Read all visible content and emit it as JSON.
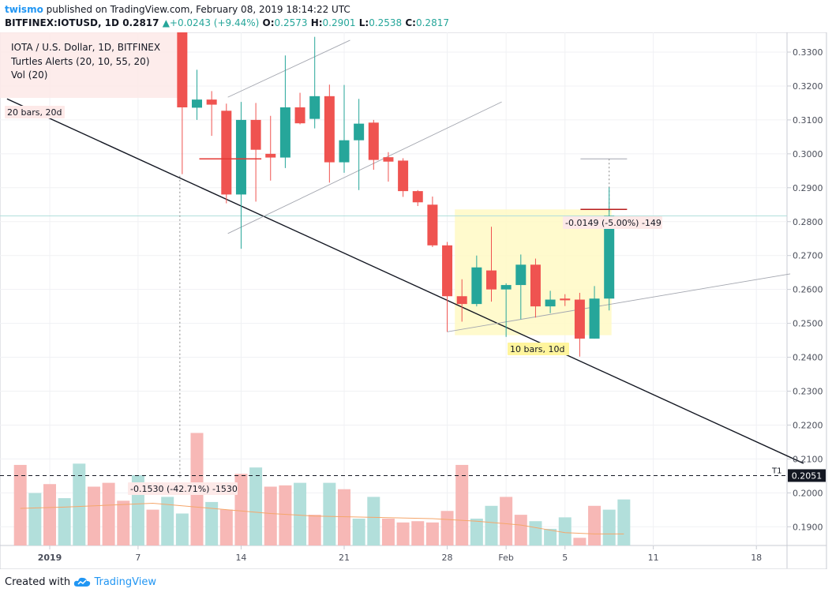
{
  "header": {
    "user": "twismo",
    "published": "published on TradingView.com, February 08, 2019 18:14:22 UTC",
    "symbol": "BITFINEX:IOTUSD, 1D",
    "last": "0.2817",
    "change": "+0.0243 (+9.44%)",
    "o_label": "O:",
    "o": "0.2573",
    "h_label": "H:",
    "h": "0.2901",
    "l_label": "L:",
    "l": "0.2538",
    "c_label": "C:",
    "c": "0.2817"
  },
  "legend": {
    "main": "IOTA / U.S. Dollar, 1D, BITFINEX",
    "indicator": "Turtles Alerts (20, 10, 55, 20)",
    "volume": "Vol (20)"
  },
  "annotations": {
    "bars20": "20 bars, 20d",
    "bars10": "10 bars, 10d",
    "measure_small": "-0.0149 (-5.00%) -149",
    "measure_big": "-0.1530 (-42.71%) -1530",
    "t1": "T1",
    "price_tag": "0.2051"
  },
  "footer": {
    "created": "Created with",
    "brand": "TradingView"
  },
  "colors": {
    "up": "#26a69a",
    "down": "#ef5350",
    "up_vol": "#b2dfdb",
    "down_vol": "#f7b8b6",
    "highlight": "#fff9c4",
    "accent": "#2196f3"
  },
  "chart_data": {
    "type": "candlestick",
    "y_ticks": [
      "0.3300",
      "0.3200",
      "0.3100",
      "0.3000",
      "0.2900",
      "0.2800",
      "0.2700",
      "0.2600",
      "0.2500",
      "0.2400",
      "0.2300",
      "0.2200",
      "0.2100",
      "0.2000",
      "0.1900"
    ],
    "x_ticks": [
      {
        "label": "2019",
        "i": 2
      },
      {
        "label": "7",
        "i": 8
      },
      {
        "label": "14",
        "i": 15
      },
      {
        "label": "21",
        "i": 22
      },
      {
        "label": "28",
        "i": 29
      },
      {
        "label": "Feb",
        "i": 33
      },
      {
        "label": "5",
        "i": 37
      },
      {
        "label": "11",
        "i": 43
      },
      {
        "label": "18",
        "i": 50
      }
    ],
    "candles": [
      {
        "i": 11,
        "o": 0.35,
        "h": 0.352,
        "l": 0.294,
        "c": 0.3137
      },
      {
        "i": 12,
        "o": 0.3136,
        "h": 0.3248,
        "l": 0.31,
        "c": 0.316
      },
      {
        "i": 13,
        "o": 0.316,
        "h": 0.3185,
        "l": 0.3053,
        "c": 0.3145
      },
      {
        "i": 14,
        "o": 0.3127,
        "h": 0.3148,
        "l": 0.2854,
        "c": 0.288
      },
      {
        "i": 15,
        "o": 0.288,
        "h": 0.3153,
        "l": 0.272,
        "c": 0.31
      },
      {
        "i": 16,
        "o": 0.31,
        "h": 0.315,
        "l": 0.2859,
        "c": 0.3012
      },
      {
        "i": 17,
        "o": 0.3,
        "h": 0.3112,
        "l": 0.2921,
        "c": 0.2989
      },
      {
        "i": 18,
        "o": 0.2989,
        "h": 0.329,
        "l": 0.2958,
        "c": 0.3137
      },
      {
        "i": 19,
        "o": 0.3137,
        "h": 0.318,
        "l": 0.3087,
        "c": 0.309
      },
      {
        "i": 20,
        "o": 0.3103,
        "h": 0.3345,
        "l": 0.3075,
        "c": 0.317
      },
      {
        "i": 21,
        "o": 0.317,
        "h": 0.3204,
        "l": 0.2915,
        "c": 0.2975
      },
      {
        "i": 22,
        "o": 0.2975,
        "h": 0.3203,
        "l": 0.2944,
        "c": 0.304
      },
      {
        "i": 23,
        "o": 0.304,
        "h": 0.3162,
        "l": 0.2893,
        "c": 0.3089
      },
      {
        "i": 24,
        "o": 0.3092,
        "h": 0.31,
        "l": 0.2953,
        "c": 0.2982
      },
      {
        "i": 25,
        "o": 0.299,
        "h": 0.3005,
        "l": 0.2918,
        "c": 0.2977
      },
      {
        "i": 26,
        "o": 0.298,
        "h": 0.2987,
        "l": 0.2873,
        "c": 0.289
      },
      {
        "i": 27,
        "o": 0.289,
        "h": 0.2893,
        "l": 0.2846,
        "c": 0.2857
      },
      {
        "i": 28,
        "o": 0.285,
        "h": 0.2874,
        "l": 0.2725,
        "c": 0.273
      },
      {
        "i": 29,
        "o": 0.273,
        "h": 0.274,
        "l": 0.2475,
        "c": 0.258
      },
      {
        "i": 30,
        "o": 0.258,
        "h": 0.263,
        "l": 0.2505,
        "c": 0.2557
      },
      {
        "i": 31,
        "o": 0.2557,
        "h": 0.27,
        "l": 0.255,
        "c": 0.2665
      },
      {
        "i": 32,
        "o": 0.2656,
        "h": 0.2785,
        "l": 0.2564,
        "c": 0.26
      },
      {
        "i": 33,
        "o": 0.26,
        "h": 0.2618,
        "l": 0.246,
        "c": 0.2613
      },
      {
        "i": 34,
        "o": 0.2613,
        "h": 0.2703,
        "l": 0.2512,
        "c": 0.2673
      },
      {
        "i": 35,
        "o": 0.2673,
        "h": 0.2691,
        "l": 0.2517,
        "c": 0.255
      },
      {
        "i": 36,
        "o": 0.255,
        "h": 0.2596,
        "l": 0.253,
        "c": 0.257
      },
      {
        "i": 37,
        "o": 0.2573,
        "h": 0.2586,
        "l": 0.2551,
        "c": 0.2568
      },
      {
        "i": 38,
        "o": 0.257,
        "h": 0.259,
        "l": 0.2402,
        "c": 0.2455
      },
      {
        "i": 39,
        "o": 0.2455,
        "h": 0.261,
        "l": 0.2455,
        "c": 0.2573
      },
      {
        "i": 40,
        "o": 0.2573,
        "h": 0.2901,
        "l": 0.2538,
        "c": 0.2817
      }
    ],
    "volume": [
      {
        "i": 0,
        "v": 0.63,
        "d": 1
      },
      {
        "i": 1,
        "v": 0.41,
        "d": 0
      },
      {
        "i": 2,
        "v": 0.48,
        "d": 1
      },
      {
        "i": 3,
        "v": 0.37,
        "d": 0
      },
      {
        "i": 4,
        "v": 0.64,
        "d": 0
      },
      {
        "i": 5,
        "v": 0.46,
        "d": 1
      },
      {
        "i": 6,
        "v": 0.49,
        "d": 1
      },
      {
        "i": 7,
        "v": 0.35,
        "d": 1
      },
      {
        "i": 8,
        "v": 0.55,
        "d": 0
      },
      {
        "i": 9,
        "v": 0.28,
        "d": 1
      },
      {
        "i": 10,
        "v": 0.38,
        "d": 0
      },
      {
        "i": 11,
        "v": 0.25,
        "d": 0
      },
      {
        "i": 12,
        "v": 0.88,
        "d": 1
      },
      {
        "i": 13,
        "v": 0.34,
        "d": 0
      },
      {
        "i": 14,
        "v": 0.28,
        "d": 1
      },
      {
        "i": 15,
        "v": 0.56,
        "d": 1
      },
      {
        "i": 16,
        "v": 0.61,
        "d": 0
      },
      {
        "i": 17,
        "v": 0.46,
        "d": 1
      },
      {
        "i": 18,
        "v": 0.47,
        "d": 1
      },
      {
        "i": 19,
        "v": 0.49,
        "d": 0
      },
      {
        "i": 20,
        "v": 0.24,
        "d": 1
      },
      {
        "i": 21,
        "v": 0.49,
        "d": 0
      },
      {
        "i": 22,
        "v": 0.44,
        "d": 1
      },
      {
        "i": 23,
        "v": 0.21,
        "d": 0
      },
      {
        "i": 24,
        "v": 0.38,
        "d": 0
      },
      {
        "i": 25,
        "v": 0.21,
        "d": 1
      },
      {
        "i": 26,
        "v": 0.18,
        "d": 1
      },
      {
        "i": 27,
        "v": 0.19,
        "d": 1
      },
      {
        "i": 28,
        "v": 0.18,
        "d": 1
      },
      {
        "i": 29,
        "v": 0.27,
        "d": 1
      },
      {
        "i": 30,
        "v": 0.63,
        "d": 1
      },
      {
        "i": 31,
        "v": 0.21,
        "d": 0
      },
      {
        "i": 32,
        "v": 0.31,
        "d": 0
      },
      {
        "i": 33,
        "v": 0.38,
        "d": 1
      },
      {
        "i": 34,
        "v": 0.24,
        "d": 1
      },
      {
        "i": 35,
        "v": 0.19,
        "d": 0
      },
      {
        "i": 36,
        "v": 0.13,
        "d": 0
      },
      {
        "i": 37,
        "v": 0.22,
        "d": 0
      },
      {
        "i": 38,
        "v": 0.06,
        "d": 1
      },
      {
        "i": 39,
        "v": 0.31,
        "d": 1
      },
      {
        "i": 40,
        "v": 0.28,
        "d": 0
      },
      {
        "i": 41,
        "v": 0.36,
        "d": 0
      }
    ],
    "volume_ma": [
      [
        0,
        0.29
      ],
      [
        3,
        0.3
      ],
      [
        7,
        0.32
      ],
      [
        9,
        0.33
      ],
      [
        11,
        0.31
      ],
      [
        13,
        0.29
      ],
      [
        15,
        0.27
      ],
      [
        17,
        0.25
      ],
      [
        20,
        0.23
      ],
      [
        24,
        0.22
      ],
      [
        28,
        0.21
      ],
      [
        31,
        0.19
      ],
      [
        34,
        0.16
      ],
      [
        36,
        0.12
      ],
      [
        37,
        0.1
      ],
      [
        39,
        0.09
      ],
      [
        41,
        0.09
      ]
    ],
    "lines": [
      {
        "name": "main-trendline",
        "color": "#131722",
        "width": 1.4,
        "p1": [
          -0.9,
          0.3162
        ],
        "p2": [
          53.2,
          0.2087
        ]
      },
      {
        "name": "upper-channel-line",
        "color": "#a3a6af",
        "width": 0.9,
        "p1": [
          14.1,
          0.3167
        ],
        "p2": [
          22.4,
          0.3335
        ]
      },
      {
        "name": "lower-channel-line",
        "color": "#a3a6af",
        "width": 0.9,
        "p1": [
          14.1,
          0.2765
        ],
        "p2": [
          32.7,
          0.3153
        ]
      },
      {
        "name": "support-line",
        "color": "#a3a6af",
        "width": 0.9,
        "p1": [
          29.0,
          0.2475
        ],
        "p2": [
          52.3,
          0.2646
        ]
      }
    ],
    "current_price": 0.2817,
    "dashed_level": 0.2051
  }
}
